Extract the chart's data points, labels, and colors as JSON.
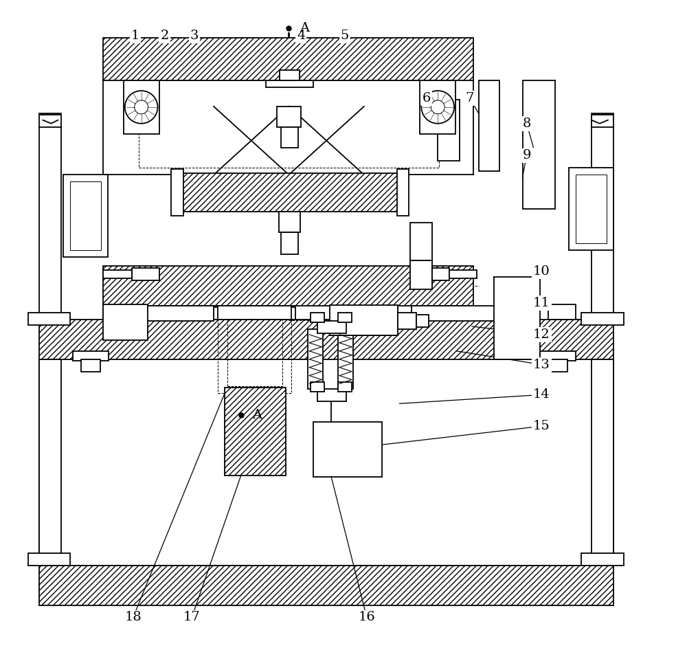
{
  "bg_color": "#ffffff",
  "line_color": "#000000",
  "fig_width": 10.0,
  "fig_height": 9.43,
  "lw": 1.3,
  "lw_thin": 0.7,
  "lw_med": 1.0
}
